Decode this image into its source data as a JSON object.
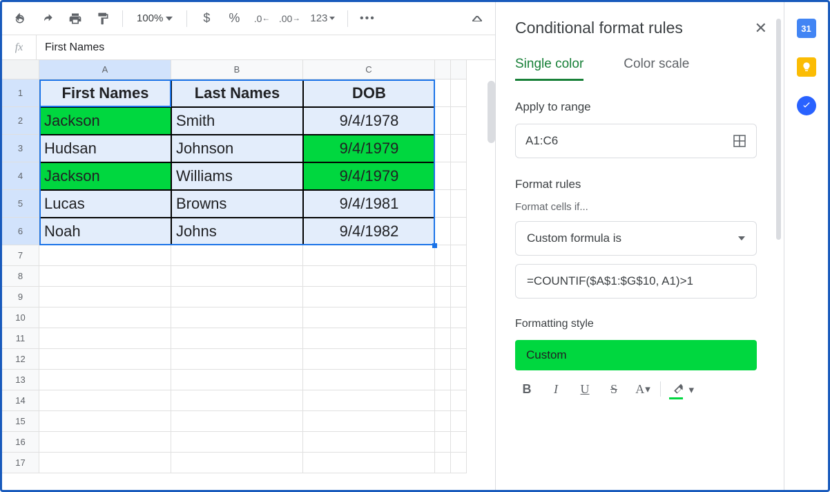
{
  "toolbar": {
    "zoom": "100%",
    "format_123": "123"
  },
  "formula_bar": {
    "fx": "fx",
    "value": "First Names"
  },
  "columns": [
    "A",
    "B",
    "C"
  ],
  "headers": [
    "First Names",
    "Last Names",
    "DOB"
  ],
  "rows": [
    {
      "a": "Jackson",
      "b": "Smith",
      "c": "9/4/1978",
      "a_green": true,
      "c_green": false
    },
    {
      "a": "Hudsan",
      "b": "Johnson",
      "c": "9/4/1979",
      "a_green": false,
      "c_green": true
    },
    {
      "a": "Jackson",
      "b": "Williams",
      "c": "9/4/1979",
      "a_green": true,
      "c_green": true
    },
    {
      "a": "Lucas",
      "b": "Browns",
      "c": "9/4/1981",
      "a_green": false,
      "c_green": false
    },
    {
      "a": "Noah",
      "b": "Johns",
      "c": "9/4/1982",
      "a_green": false,
      "c_green": false
    }
  ],
  "row_numbers": [
    1,
    2,
    3,
    4,
    5,
    6,
    7,
    8,
    9,
    10,
    11,
    12,
    13,
    14,
    15,
    16,
    17
  ],
  "sidepanel": {
    "title": "Conditional format rules",
    "tab_single": "Single color",
    "tab_scale": "Color scale",
    "apply_label": "Apply to range",
    "range": "A1:C6",
    "rules_label": "Format rules",
    "cells_if": "Format cells if...",
    "formula_type": "Custom formula is",
    "formula": "=COUNTIF($A$1:$G$10, A1)>1",
    "style_label": "Formatting style",
    "style_name": "Custom"
  },
  "colors": {
    "highlight": "#00d73f",
    "data_bg": "#e3edfb",
    "accent_green": "#188038",
    "selection": "#1a73e8"
  }
}
